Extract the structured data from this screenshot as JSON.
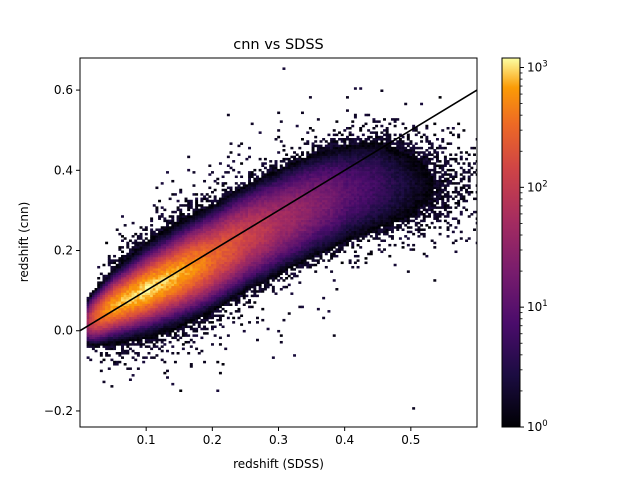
{
  "chart_data": {
    "type": "heatmap",
    "subtype": "2d-histogram",
    "title": "cnn vs SDSS",
    "xlabel": "redshift (SDSS)",
    "ylabel": "redshift (cnn)",
    "xlim": [
      0.0,
      0.6
    ],
    "ylim": [
      -0.24,
      0.68
    ],
    "xticks": [
      0.1,
      0.2,
      0.3,
      0.4,
      0.5
    ],
    "xtick_labels": [
      "0.1",
      "0.2",
      "0.3",
      "0.4",
      "0.5"
    ],
    "yticks": [
      -0.2,
      0.0,
      0.2,
      0.4,
      0.6
    ],
    "ytick_labels": [
      "−0.2",
      "0.0",
      "0.2",
      "0.4",
      "0.6"
    ],
    "colormap": "inferno",
    "color_scale": "log",
    "colorbar_range": [
      1,
      1200
    ],
    "colorbar_ticks": [
      1,
      10,
      100,
      1000
    ],
    "colorbar_tick_labels": [
      {
        "base": "10",
        "exp": "0"
      },
      {
        "base": "10",
        "exp": "1"
      },
      {
        "base": "10",
        "exp": "2"
      },
      {
        "base": "10",
        "exp": "3"
      }
    ],
    "reference_line": {
      "x": [
        0.0,
        0.6
      ],
      "y": [
        0.0,
        0.6
      ],
      "color": "#000000"
    },
    "density_ridge": {
      "x": [
        0.01,
        0.05,
        0.1,
        0.15,
        0.2,
        0.25,
        0.3,
        0.35,
        0.4,
        0.45
      ],
      "y_center": [
        0.02,
        0.06,
        0.1,
        0.14,
        0.18,
        0.23,
        0.27,
        0.31,
        0.34,
        0.36
      ],
      "peak_counts": [
        60,
        700,
        1000,
        700,
        300,
        120,
        50,
        25,
        10,
        5
      ]
    },
    "grid": false
  }
}
